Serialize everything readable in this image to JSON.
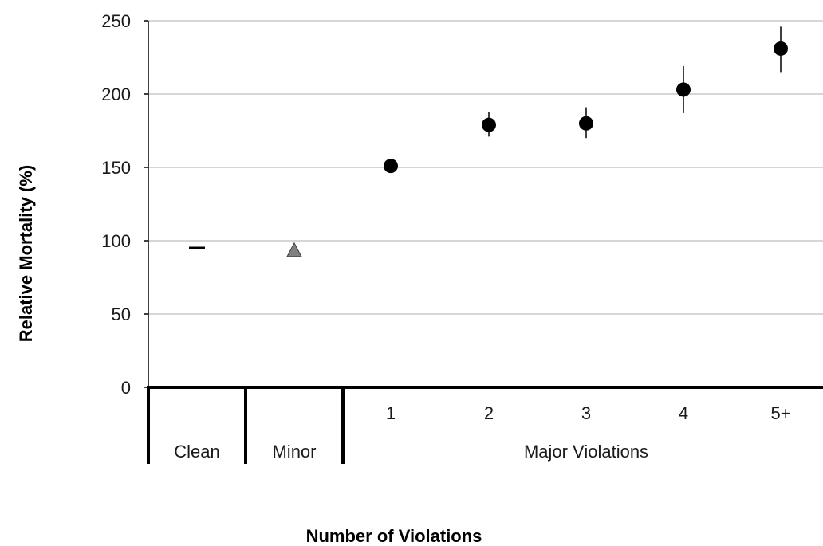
{
  "chart_data": {
    "type": "scatter",
    "ylabel": "Relative Mortality (%)",
    "xlabel": "Number of Violations",
    "ylim": [
      0,
      250
    ],
    "yticks": [
      "0",
      "50",
      "100",
      "150",
      "200",
      "250"
    ],
    "grid": true,
    "categories": [
      "Clean",
      "Minor",
      "1",
      "2",
      "3",
      "4",
      "5+"
    ],
    "group_labels": [
      "Clean",
      "Minor",
      "Major Violations"
    ],
    "points": [
      {
        "category": "Clean",
        "value": 95,
        "marker": "dash"
      },
      {
        "category": "Minor",
        "value": 93,
        "marker": "triangle"
      },
      {
        "category": "1",
        "value": 151,
        "marker": "circle",
        "err_low": 151,
        "err_high": 151
      },
      {
        "category": "2",
        "value": 179,
        "marker": "circle",
        "err_low": 171,
        "err_high": 188
      },
      {
        "category": "3",
        "value": 180,
        "marker": "circle",
        "err_low": 170,
        "err_high": 191
      },
      {
        "category": "4",
        "value": 203,
        "marker": "circle",
        "err_low": 187,
        "err_high": 219
      },
      {
        "category": "5+",
        "value": 231,
        "marker": "circle",
        "err_low": 215,
        "err_high": 246
      }
    ],
    "colors": {
      "circle": "#000000",
      "triangle": "#808080",
      "dash": "#000000",
      "grid": "#c8c8c8"
    }
  }
}
